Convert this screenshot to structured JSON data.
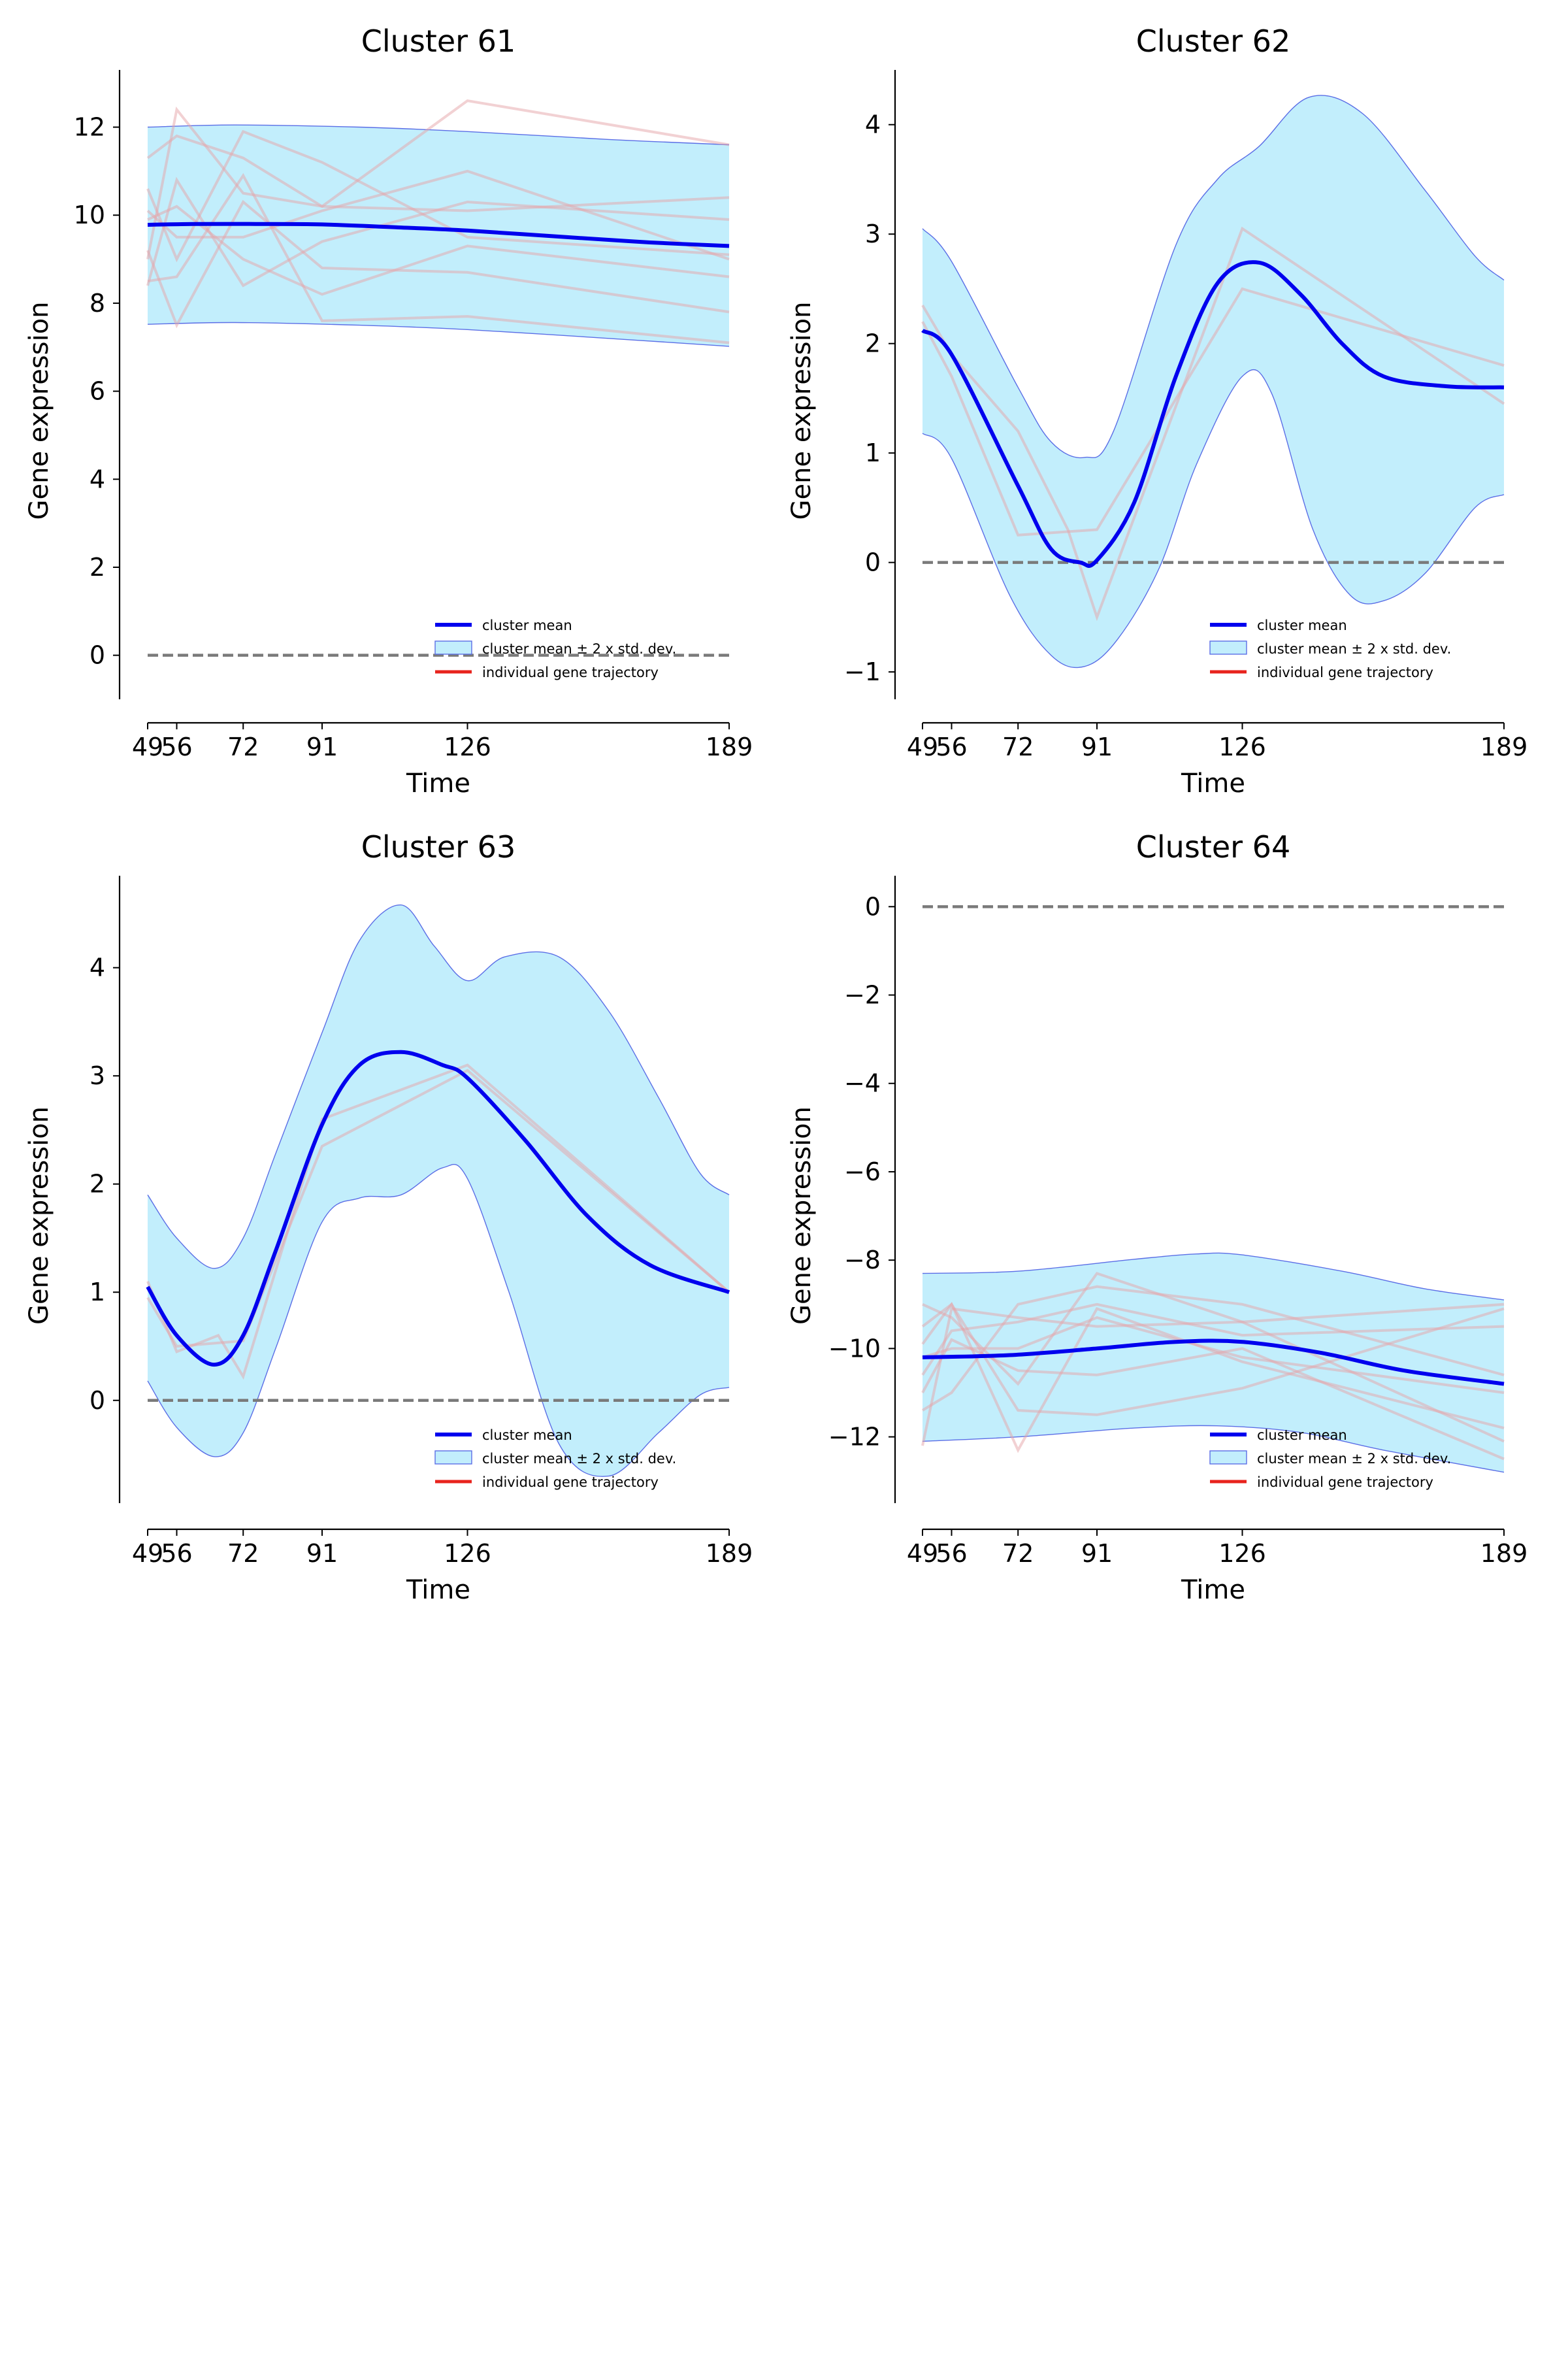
{
  "figure": {
    "background": "#ffffff",
    "colors": {
      "mean": "#0000ee",
      "band_fill": "#c2eefc",
      "band_edge": "#5b6ee6",
      "trajectory": "#e6a3a8",
      "zero_line": "#7a7a7a",
      "axis": "#000000"
    },
    "legend_labels": [
      "cluster mean",
      "cluster mean ± 2 x std. dev.",
      "individual gene trajectory"
    ]
  },
  "chart_data": [
    {
      "type": "line",
      "title": "Cluster 61",
      "xlabel": "Time",
      "ylabel": "Gene expression",
      "x_ticks": [
        49,
        56,
        72,
        91,
        126,
        189
      ],
      "y_ticks": [
        0,
        2,
        4,
        6,
        8,
        10,
        12
      ],
      "xlim": [
        49,
        189
      ],
      "ylim": [
        -1.0,
        13.3
      ],
      "legend": "lower-right",
      "mean": [
        [
          49,
          9.78
        ],
        [
          60,
          9.8
        ],
        [
          75,
          9.8
        ],
        [
          91,
          9.79
        ],
        [
          110,
          9.72
        ],
        [
          126,
          9.65
        ],
        [
          150,
          9.5
        ],
        [
          170,
          9.38
        ],
        [
          189,
          9.3
        ]
      ],
      "upper": [
        [
          49,
          12.0
        ],
        [
          70,
          12.05
        ],
        [
          100,
          12.0
        ],
        [
          126,
          11.9
        ],
        [
          160,
          11.72
        ],
        [
          189,
          11.6
        ]
      ],
      "lower": [
        [
          49,
          7.52
        ],
        [
          70,
          7.56
        ],
        [
          100,
          7.5
        ],
        [
          126,
          7.4
        ],
        [
          160,
          7.2
        ],
        [
          189,
          7.02
        ]
      ],
      "trajectories": [
        [
          [
            49,
            9.0
          ],
          [
            56,
            12.4
          ],
          [
            72,
            10.5
          ],
          [
            91,
            10.2
          ],
          [
            126,
            12.6
          ],
          [
            189,
            11.6
          ]
        ],
        [
          [
            49,
            11.3
          ],
          [
            56,
            11.8
          ],
          [
            72,
            11.3
          ],
          [
            91,
            10.2
          ],
          [
            126,
            10.1
          ],
          [
            189,
            10.4
          ]
        ],
        [
          [
            49,
            10.6
          ],
          [
            56,
            9.0
          ],
          [
            72,
            11.9
          ],
          [
            91,
            11.2
          ],
          [
            126,
            9.5
          ],
          [
            189,
            9.1
          ]
        ],
        [
          [
            49,
            9.2
          ],
          [
            56,
            7.5
          ],
          [
            72,
            10.3
          ],
          [
            91,
            8.8
          ],
          [
            126,
            8.7
          ],
          [
            189,
            7.8
          ]
        ],
        [
          [
            49,
            8.4
          ],
          [
            56,
            10.8
          ],
          [
            72,
            8.4
          ],
          [
            91,
            9.4
          ],
          [
            126,
            10.3
          ],
          [
            189,
            9.9
          ]
        ],
        [
          [
            49,
            8.5
          ],
          [
            56,
            8.6
          ],
          [
            72,
            10.9
          ],
          [
            91,
            7.6
          ],
          [
            126,
            7.7
          ],
          [
            189,
            7.1
          ]
        ],
        [
          [
            49,
            10.1
          ],
          [
            56,
            9.5
          ],
          [
            72,
            9.5
          ],
          [
            91,
            10.1
          ],
          [
            126,
            11.0
          ],
          [
            189,
            9.0
          ]
        ],
        [
          [
            49,
            9.9
          ],
          [
            56,
            10.2
          ],
          [
            72,
            9.0
          ],
          [
            91,
            8.2
          ],
          [
            126,
            9.3
          ],
          [
            189,
            8.6
          ]
        ]
      ]
    },
    {
      "type": "line",
      "title": "Cluster 62",
      "xlabel": "Time",
      "ylabel": "Gene expression",
      "x_ticks": [
        49,
        56,
        72,
        91,
        126,
        189
      ],
      "y_ticks": [
        -1,
        0,
        1,
        2,
        3,
        4
      ],
      "xlim": [
        49,
        189
      ],
      "ylim": [
        -1.25,
        4.5
      ],
      "legend": "lower-right",
      "mean": [
        [
          49,
          2.12
        ],
        [
          56,
          1.9
        ],
        [
          72,
          0.7
        ],
        [
          80,
          0.12
        ],
        [
          87,
          0.0
        ],
        [
          91,
          0.02
        ],
        [
          100,
          0.55
        ],
        [
          110,
          1.7
        ],
        [
          120,
          2.55
        ],
        [
          130,
          2.74
        ],
        [
          140,
          2.45
        ],
        [
          150,
          2.0
        ],
        [
          160,
          1.7
        ],
        [
          175,
          1.61
        ],
        [
          189,
          1.6
        ]
      ],
      "upper": [
        [
          49,
          3.05
        ],
        [
          56,
          2.75
        ],
        [
          72,
          1.6
        ],
        [
          80,
          1.1
        ],
        [
          88,
          0.96
        ],
        [
          95,
          1.2
        ],
        [
          110,
          2.9
        ],
        [
          120,
          3.5
        ],
        [
          130,
          3.8
        ],
        [
          142,
          4.25
        ],
        [
          155,
          4.1
        ],
        [
          170,
          3.4
        ],
        [
          182,
          2.8
        ],
        [
          189,
          2.58
        ]
      ],
      "lower": [
        [
          49,
          1.18
        ],
        [
          56,
          0.95
        ],
        [
          70,
          -0.3
        ],
        [
          80,
          -0.85
        ],
        [
          88,
          -0.95
        ],
        [
          96,
          -0.7
        ],
        [
          106,
          -0.05
        ],
        [
          115,
          0.9
        ],
        [
          126,
          1.7
        ],
        [
          133,
          1.55
        ],
        [
          143,
          0.3
        ],
        [
          152,
          -0.3
        ],
        [
          160,
          -0.35
        ],
        [
          170,
          -0.1
        ],
        [
          182,
          0.5
        ],
        [
          189,
          0.62
        ]
      ],
      "trajectories": [
        [
          [
            49,
            2.35
          ],
          [
            56,
            1.9
          ],
          [
            72,
            1.2
          ],
          [
            84,
            0.3
          ],
          [
            91,
            -0.5
          ],
          [
            126,
            3.05
          ],
          [
            189,
            1.45
          ]
        ],
        [
          [
            49,
            2.2
          ],
          [
            56,
            1.7
          ],
          [
            72,
            0.25
          ],
          [
            91,
            0.3
          ],
          [
            126,
            2.5
          ],
          [
            189,
            1.8
          ]
        ]
      ]
    },
    {
      "type": "line",
      "title": "Cluster 63",
      "xlabel": "Time",
      "ylabel": "Gene expression",
      "x_ticks": [
        49,
        56,
        72,
        91,
        126,
        189
      ],
      "y_ticks": [
        0,
        1,
        2,
        3,
        4
      ],
      "xlim": [
        49,
        189
      ],
      "ylim": [
        -0.95,
        4.85
      ],
      "legend": "lower-right",
      "mean": [
        [
          49,
          1.05
        ],
        [
          56,
          0.6
        ],
        [
          65,
          0.33
        ],
        [
          72,
          0.6
        ],
        [
          80,
          1.4
        ],
        [
          91,
          2.55
        ],
        [
          100,
          3.1
        ],
        [
          110,
          3.22
        ],
        [
          120,
          3.1
        ],
        [
          126,
          2.98
        ],
        [
          140,
          2.4
        ],
        [
          155,
          1.7
        ],
        [
          170,
          1.25
        ],
        [
          189,
          1.0
        ]
      ],
      "upper": [
        [
          49,
          1.9
        ],
        [
          56,
          1.5
        ],
        [
          65,
          1.22
        ],
        [
          72,
          1.5
        ],
        [
          80,
          2.3
        ],
        [
          91,
          3.4
        ],
        [
          100,
          4.25
        ],
        [
          110,
          4.58
        ],
        [
          118,
          4.2
        ],
        [
          126,
          3.88
        ],
        [
          135,
          4.1
        ],
        [
          148,
          4.1
        ],
        [
          160,
          3.6
        ],
        [
          172,
          2.8
        ],
        [
          182,
          2.1
        ],
        [
          189,
          1.9
        ]
      ],
      "lower": [
        [
          49,
          0.18
        ],
        [
          56,
          -0.25
        ],
        [
          65,
          -0.52
        ],
        [
          72,
          -0.3
        ],
        [
          80,
          0.5
        ],
        [
          91,
          1.65
        ],
        [
          100,
          1.87
        ],
        [
          110,
          1.9
        ],
        [
          120,
          2.15
        ],
        [
          126,
          2.05
        ],
        [
          136,
          1.0
        ],
        [
          148,
          -0.4
        ],
        [
          160,
          -0.7
        ],
        [
          172,
          -0.3
        ],
        [
          182,
          0.05
        ],
        [
          189,
          0.12
        ]
      ],
      "trajectories": [
        [
          [
            49,
            1.1
          ],
          [
            56,
            0.45
          ],
          [
            66,
            0.6
          ],
          [
            72,
            0.22
          ],
          [
            91,
            2.6
          ],
          [
            126,
            3.1
          ],
          [
            189,
            1.0
          ]
        ],
        [
          [
            49,
            0.95
          ],
          [
            56,
            0.5
          ],
          [
            72,
            0.55
          ],
          [
            91,
            2.35
          ],
          [
            126,
            3.05
          ],
          [
            189,
            1.0
          ]
        ]
      ]
    },
    {
      "type": "line",
      "title": "Cluster 64",
      "xlabel": "Time",
      "ylabel": "Gene expression",
      "x_ticks": [
        49,
        56,
        72,
        91,
        126,
        189
      ],
      "y_ticks": [
        -12,
        -10,
        -8,
        -6,
        -4,
        -2,
        0
      ],
      "xlim": [
        49,
        189
      ],
      "ylim": [
        -13.5,
        0.7
      ],
      "legend": "lower-right",
      "mean": [
        [
          49,
          -10.2
        ],
        [
          70,
          -10.15
        ],
        [
          91,
          -10.0
        ],
        [
          110,
          -9.85
        ],
        [
          126,
          -9.85
        ],
        [
          145,
          -10.1
        ],
        [
          165,
          -10.5
        ],
        [
          189,
          -10.8
        ]
      ],
      "upper": [
        [
          49,
          -8.3
        ],
        [
          72,
          -8.25
        ],
        [
          100,
          -7.98
        ],
        [
          115,
          -7.86
        ],
        [
          126,
          -7.88
        ],
        [
          150,
          -8.25
        ],
        [
          170,
          -8.65
        ],
        [
          189,
          -8.9
        ]
      ],
      "lower": [
        [
          49,
          -12.1
        ],
        [
          72,
          -12.0
        ],
        [
          100,
          -11.8
        ],
        [
          120,
          -11.75
        ],
        [
          140,
          -11.9
        ],
        [
          160,
          -12.3
        ],
        [
          189,
          -12.8
        ]
      ],
      "trajectories": [
        [
          [
            49,
            -9.9
          ],
          [
            56,
            -9.0
          ],
          [
            72,
            -12.3
          ],
          [
            91,
            -9.1
          ],
          [
            126,
            -10.3
          ],
          [
            189,
            -11.8
          ]
        ],
        [
          [
            49,
            -11.4
          ],
          [
            56,
            -11.0
          ],
          [
            72,
            -9.0
          ],
          [
            91,
            -8.6
          ],
          [
            126,
            -9.0
          ],
          [
            189,
            -10.6
          ]
        ],
        [
          [
            49,
            -12.2
          ],
          [
            56,
            -9.1
          ],
          [
            72,
            -9.3
          ],
          [
            91,
            -9.5
          ],
          [
            126,
            -9.4
          ],
          [
            189,
            -9.0
          ]
        ],
        [
          [
            49,
            -9.0
          ],
          [
            56,
            -9.3
          ],
          [
            72,
            -10.8
          ],
          [
            91,
            -8.3
          ],
          [
            126,
            -9.4
          ],
          [
            189,
            -12.1
          ]
        ],
        [
          [
            49,
            -9.5
          ],
          [
            56,
            -9.0
          ],
          [
            72,
            -11.4
          ],
          [
            91,
            -11.5
          ],
          [
            126,
            -10.9
          ],
          [
            189,
            -9.1
          ]
        ],
        [
          [
            49,
            -10.2
          ],
          [
            56,
            -10.0
          ],
          [
            72,
            -10.0
          ],
          [
            91,
            -9.3
          ],
          [
            126,
            -10.2
          ],
          [
            189,
            -11.0
          ]
        ],
        [
          [
            49,
            -11.0
          ],
          [
            56,
            -9.8
          ],
          [
            72,
            -10.5
          ],
          [
            91,
            -10.6
          ],
          [
            126,
            -10.0
          ],
          [
            189,
            -12.5
          ]
        ],
        [
          [
            49,
            -10.6
          ],
          [
            56,
            -9.6
          ],
          [
            72,
            -9.4
          ],
          [
            91,
            -9.0
          ],
          [
            126,
            -9.7
          ],
          [
            189,
            -9.5
          ]
        ]
      ]
    }
  ]
}
